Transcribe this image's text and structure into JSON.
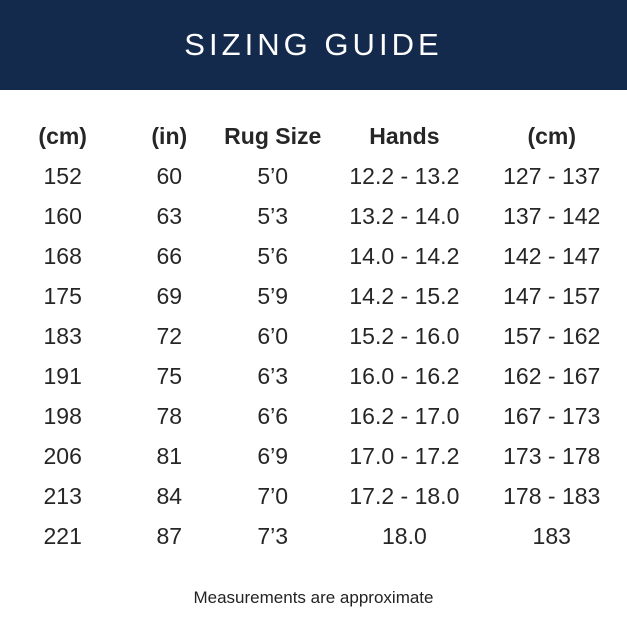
{
  "header": {
    "title": "SIZING GUIDE"
  },
  "table": {
    "columns": [
      "(cm)",
      "(in)",
      "Rug Size",
      "Hands",
      "(cm)"
    ],
    "rows": [
      [
        "152",
        "60",
        "5’0",
        "12.2 - 13.2",
        "127 - 137"
      ],
      [
        "160",
        "63",
        "5’3",
        "13.2 - 14.0",
        "137 - 142"
      ],
      [
        "168",
        "66",
        "5’6",
        "14.0 - 14.2",
        "142 - 147"
      ],
      [
        "175",
        "69",
        "5’9",
        "14.2 - 15.2",
        "147 - 157"
      ],
      [
        "183",
        "72",
        "6’0",
        "15.2 - 16.0",
        "157 - 162"
      ],
      [
        "191",
        "75",
        "6’3",
        "16.0 - 16.2",
        "162 - 167"
      ],
      [
        "198",
        "78",
        "6’6",
        "16.2 - 17.0",
        "167 - 173"
      ],
      [
        "206",
        "81",
        "6’9",
        "17.0 - 17.2",
        "173 - 178"
      ],
      [
        "213",
        "84",
        "7’0",
        "17.2 - 18.0",
        "178 - 183"
      ],
      [
        "221",
        "87",
        "7’3",
        "18.0",
        "183"
      ]
    ]
  },
  "footnote": "Measurements are approximate",
  "colors": {
    "banner_background": "#142a4d",
    "banner_text": "#fdfdfd",
    "body_text": "#262626"
  }
}
